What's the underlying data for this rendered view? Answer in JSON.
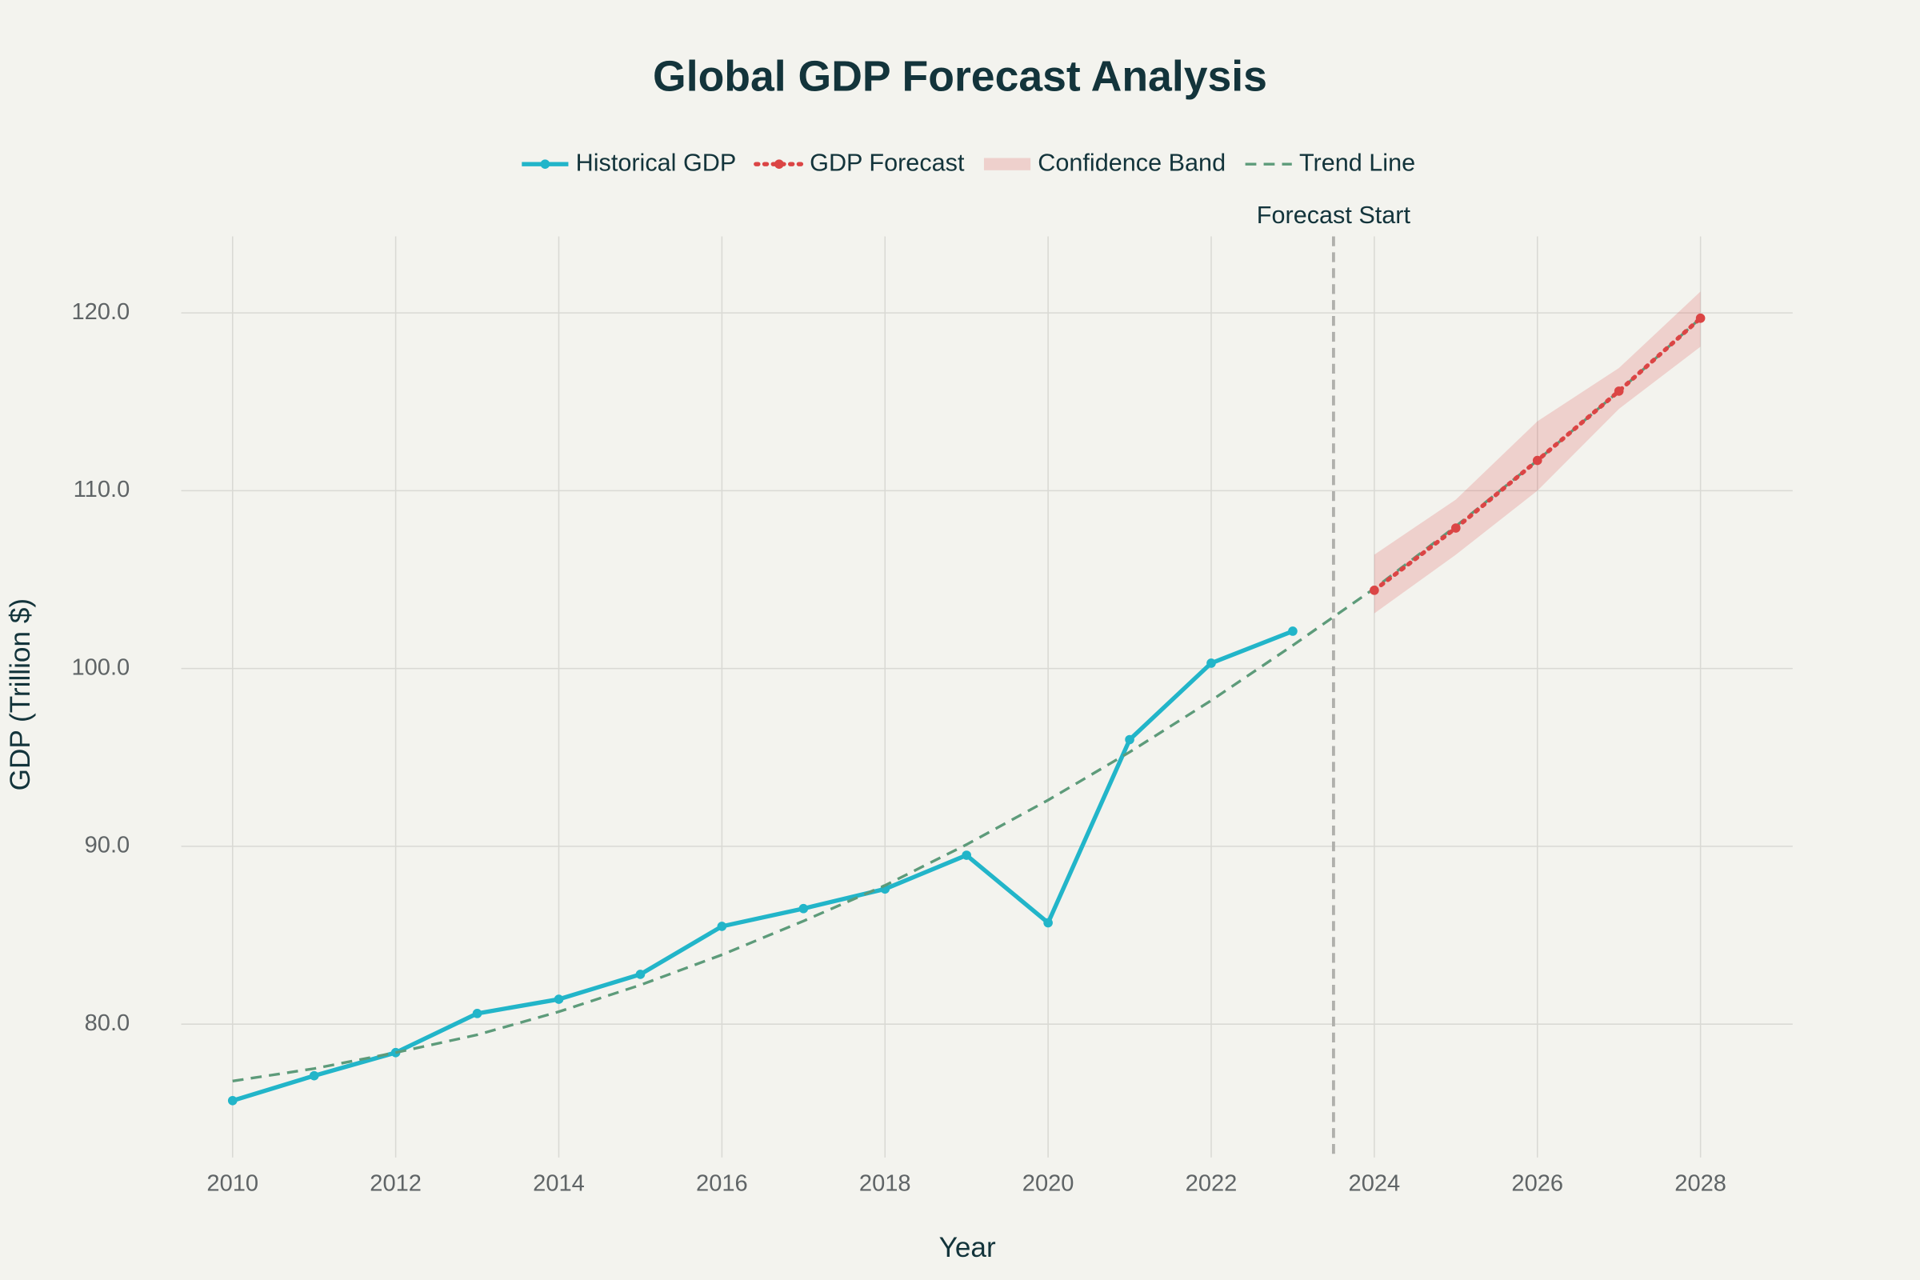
{
  "chart_data": {
    "type": "line",
    "title": "Global GDP Forecast Analysis",
    "x_label": "Year",
    "y_label": "GDP (Trillion $)",
    "xlim": [
      2009.37,
      2029.13
    ],
    "ylim": [
      72.5,
      124.3
    ],
    "xticks": [
      2010,
      2012,
      2014,
      2016,
      2018,
      2020,
      2022,
      2024,
      2026,
      2028
    ],
    "yticks": [
      {
        "value": 80,
        "label": "80.0"
      },
      {
        "value": 90,
        "label": "90.0"
      },
      {
        "value": 100,
        "label": "100.0"
      },
      {
        "value": 110,
        "label": "110.0"
      },
      {
        "value": 120,
        "label": "120.0"
      }
    ],
    "grid": true,
    "legend": "top",
    "vline": {
      "x": 2023.5,
      "label": "Forecast Start",
      "color": "#b0b0ac"
    },
    "series": [
      {
        "name": "Historical GDP",
        "color": "#22b5c9",
        "kind": "line-markers",
        "x": [
          2010,
          2011,
          2012,
          2013,
          2014,
          2015,
          2016,
          2017,
          2018,
          2019,
          2020,
          2021,
          2022,
          2023
        ],
        "values": [
          75.7,
          77.1,
          78.4,
          80.6,
          81.4,
          82.8,
          85.5,
          86.5,
          87.6,
          89.5,
          85.7,
          96.0,
          100.3,
          102.1
        ]
      },
      {
        "name": "GDP Forecast",
        "color": "#db4545",
        "kind": "dotted-markers",
        "x": [
          2024,
          2025,
          2026,
          2027,
          2028
        ],
        "values": [
          104.4,
          107.9,
          111.7,
          115.6,
          119.7
        ]
      },
      {
        "name": "Confidence Band",
        "color": "#db4545",
        "kind": "band",
        "x": [
          2024,
          2025,
          2026,
          2027,
          2028
        ],
        "upper": [
          106.4,
          109.5,
          113.9,
          116.9,
          121.2
        ],
        "lower": [
          103.1,
          106.4,
          110.0,
          114.6,
          118.1
        ]
      },
      {
        "name": "Trend Line",
        "color": "#5d9b7a",
        "kind": "dashed",
        "x": [
          2010,
          2011,
          2012,
          2013,
          2014,
          2015,
          2016,
          2017,
          2018,
          2019,
          2020,
          2021,
          2022,
          2023,
          2024,
          2025,
          2026,
          2027,
          2028
        ],
        "values": [
          76.8,
          77.5,
          78.4,
          79.4,
          80.7,
          82.2,
          83.9,
          85.8,
          87.8,
          90.1,
          92.6,
          95.3,
          98.2,
          101.3,
          104.5,
          108.0,
          111.7,
          115.6,
          119.7
        ]
      }
    ]
  }
}
